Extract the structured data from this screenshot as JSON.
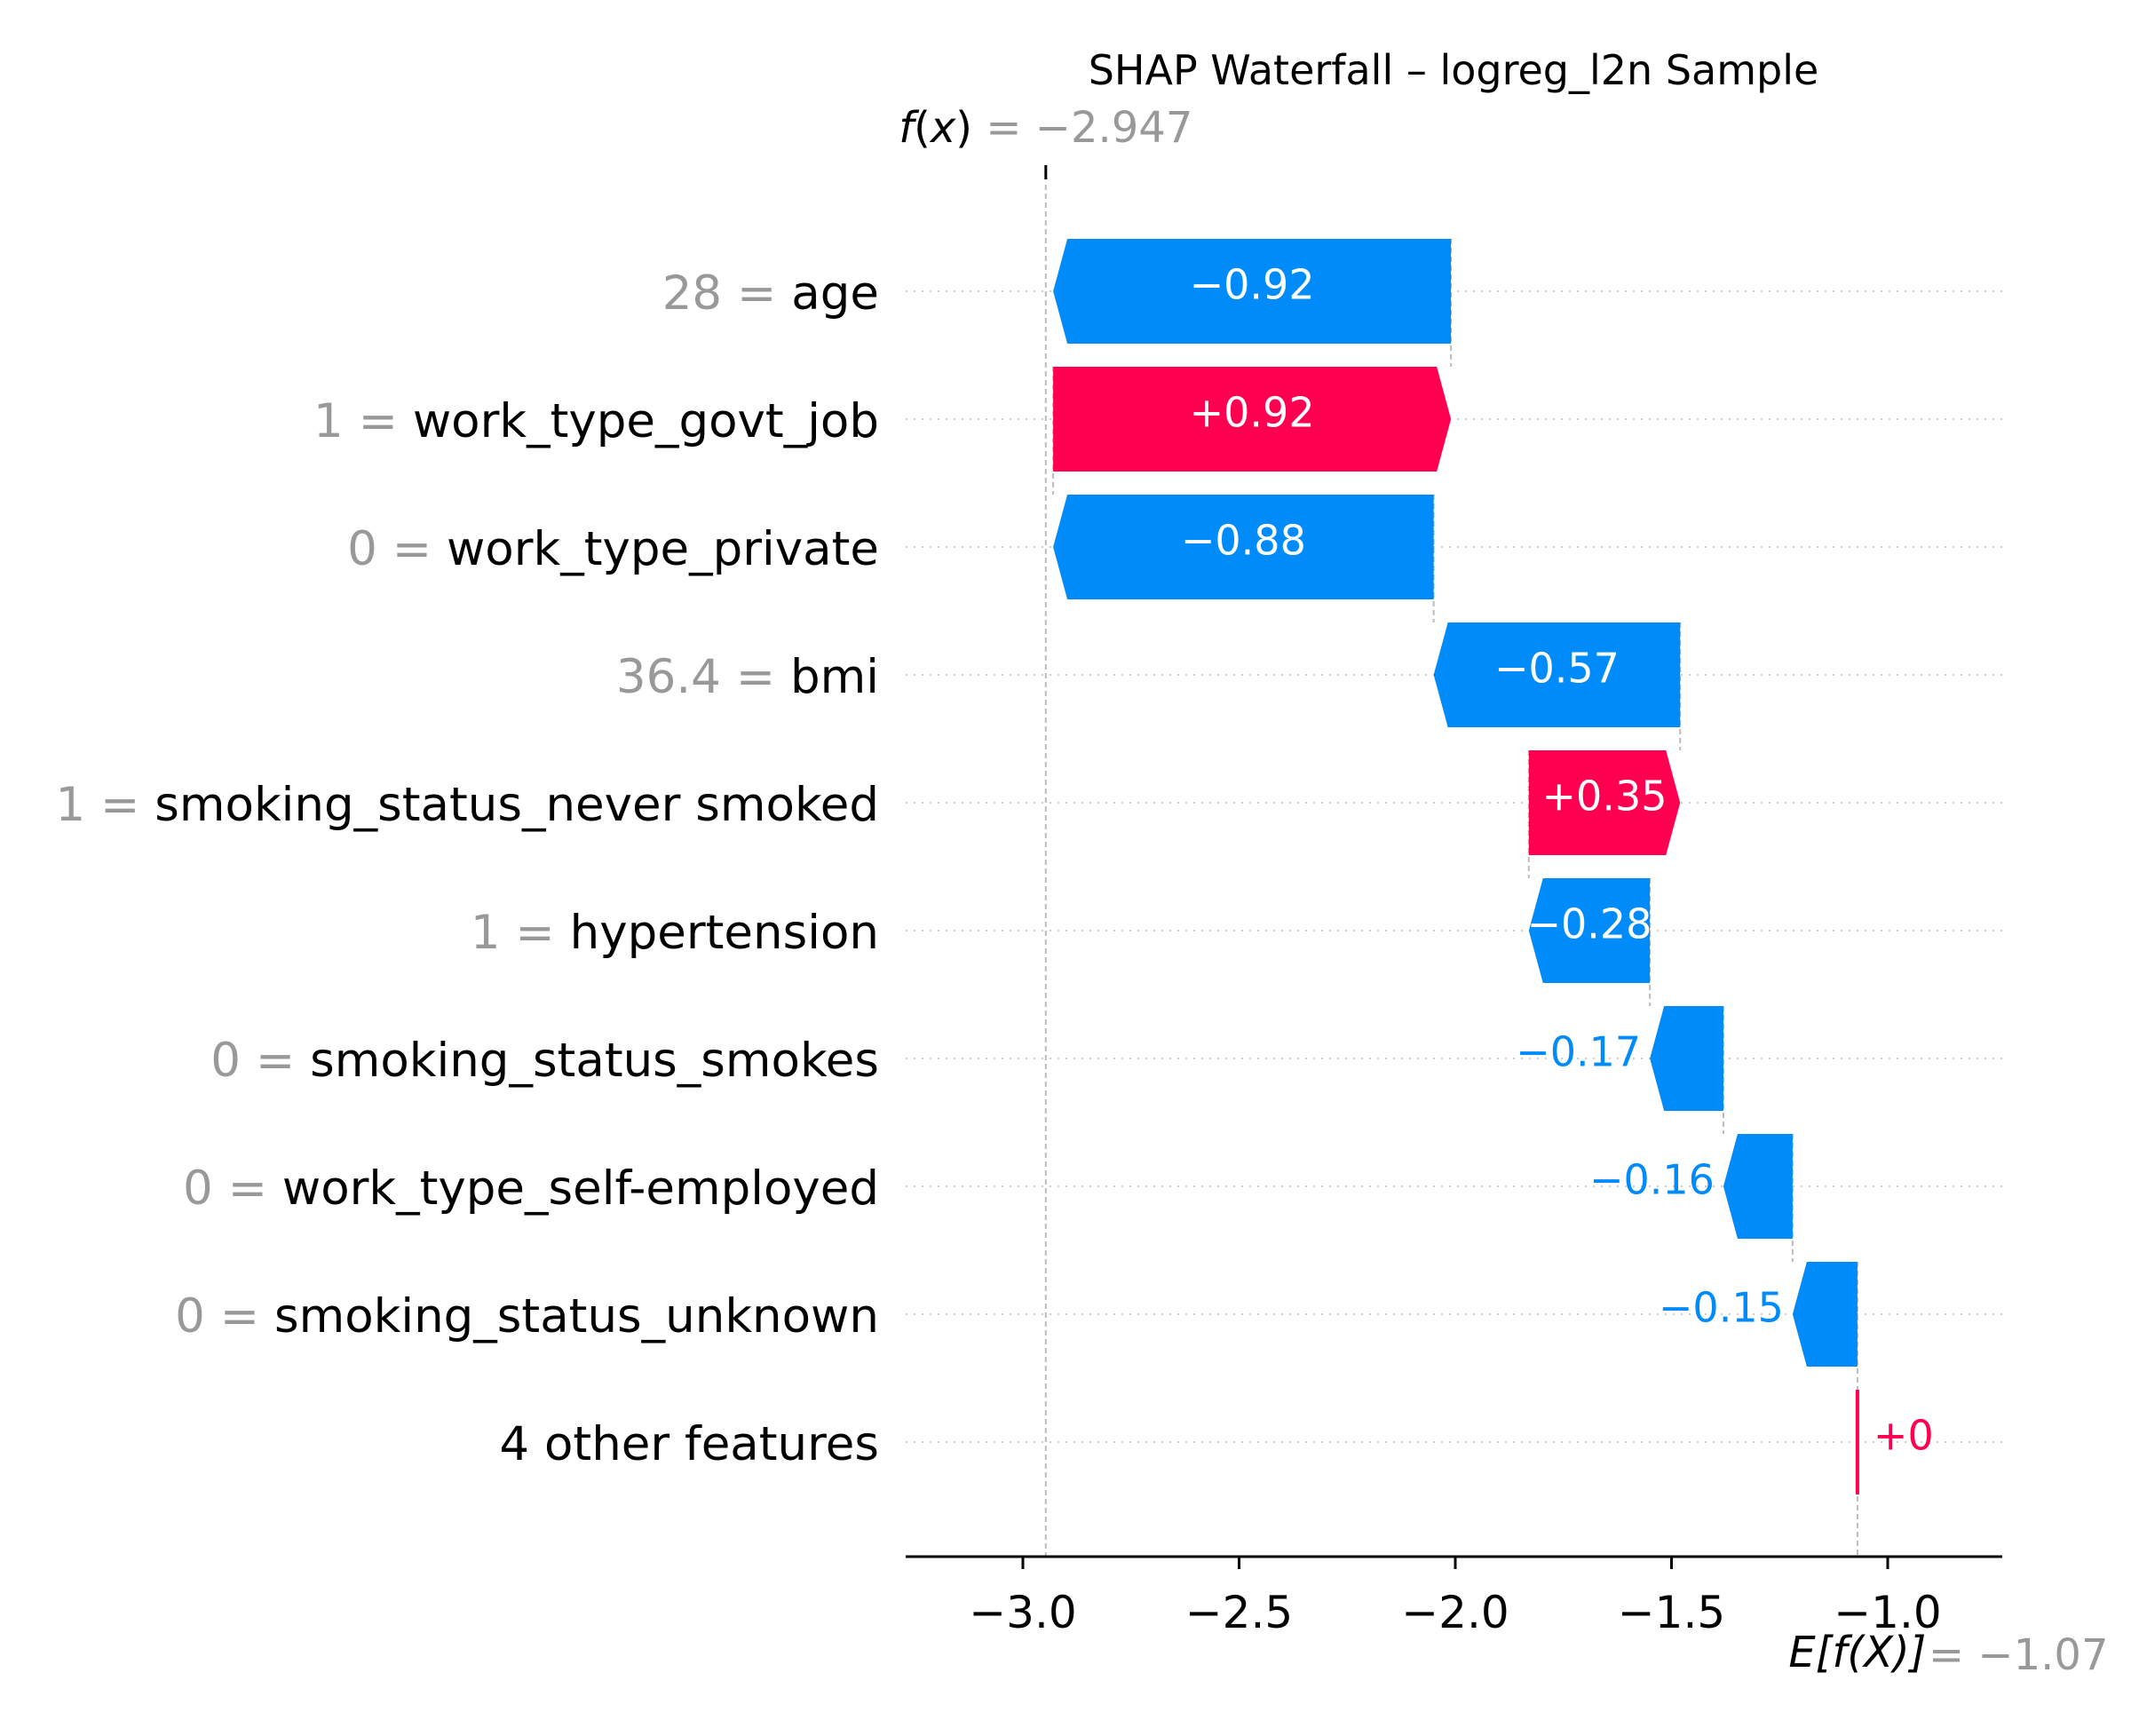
{
  "chart_data": {
    "type": "waterfall",
    "title": "SHAP Waterfall – logreg_l2n Sample",
    "fx": {
      "prefix": "f",
      "var": "x",
      "value_text": "= −2.947",
      "value": -2.947
    },
    "efx": {
      "prefix": "E[f(X)]",
      "value_text": "= −1.07",
      "value": -1.07
    },
    "features": [
      {
        "value": "28",
        "name": "age",
        "contribution": -0.92,
        "label": "−0.92"
      },
      {
        "value": "1",
        "name": "work_type_govt_job",
        "contribution": 0.92,
        "label": "+0.92"
      },
      {
        "value": "0",
        "name": "work_type_private",
        "contribution": -0.88,
        "label": "−0.88"
      },
      {
        "value": "36.4",
        "name": "bmi",
        "contribution": -0.57,
        "label": "−0.57"
      },
      {
        "value": "1",
        "name": "smoking_status_never smoked",
        "contribution": 0.35,
        "label": "+0.35"
      },
      {
        "value": "1",
        "name": "hypertension",
        "contribution": -0.28,
        "label": "−0.28"
      },
      {
        "value": "0",
        "name": "smoking_status_smokes",
        "contribution": -0.17,
        "label": "−0.17"
      },
      {
        "value": "0",
        "name": "work_type_self-employed",
        "contribution": -0.16,
        "label": "−0.16"
      },
      {
        "value": "0",
        "name": "smoking_status_unknown",
        "contribution": -0.15,
        "label": "−0.15"
      },
      {
        "value": "",
        "name": "4 other features",
        "contribution": 0.0,
        "label": "+0"
      }
    ],
    "xaxis": {
      "ticks": [
        -3.0,
        -2.5,
        -2.0,
        -1.5,
        -1.0
      ],
      "tick_labels": [
        "−3.0",
        "−2.5",
        "−2.0",
        "−1.5",
        "−1.0"
      ],
      "xlim": [
        -3.27,
        -0.74
      ]
    },
    "colors": {
      "positive": "#ff0051",
      "negative": "#008bfb",
      "feature_value": "#999999",
      "guide": "#bbbbbb",
      "axis": "#000000"
    }
  }
}
